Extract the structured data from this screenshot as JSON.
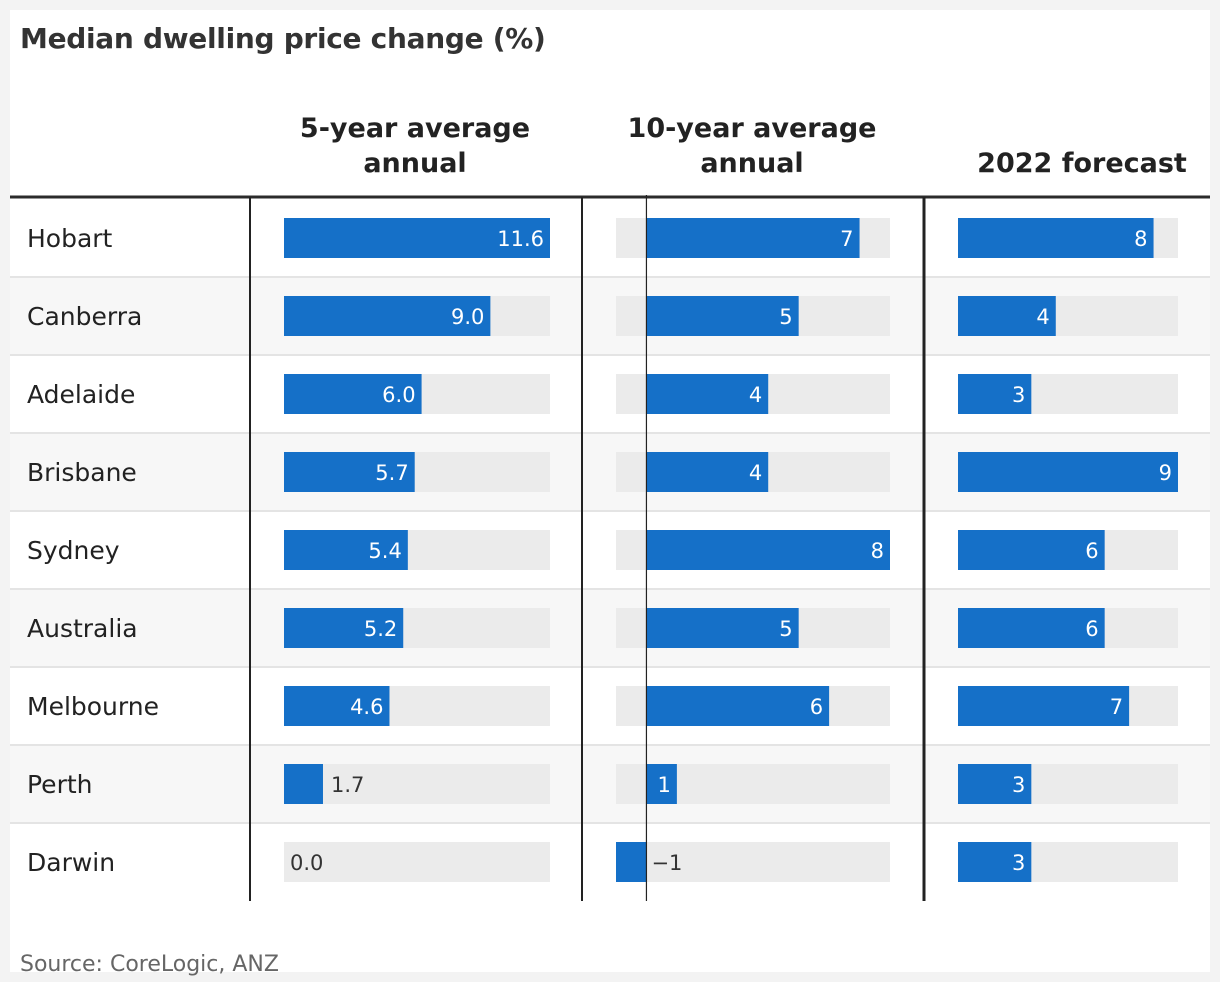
{
  "chart_data": {
    "type": "table",
    "title": "Median dwelling price change (%)",
    "source": "Source: CoreLogic, ANZ",
    "rows": [
      "Hobart",
      "Canberra",
      "Adelaide",
      "Brisbane",
      "Sydney",
      "Australia",
      "Melbourne",
      "Perth",
      "Darwin"
    ],
    "columns": [
      {
        "name": "5-year average annual",
        "header_lines": [
          "5-year average",
          "annual"
        ],
        "values": [
          11.6,
          9.0,
          6.0,
          5.7,
          5.4,
          5.2,
          4.6,
          1.7,
          0.0
        ],
        "labels": [
          "11.6",
          "9.0",
          "6.0",
          "5.7",
          "5.4",
          "5.2",
          "4.6",
          "1.7",
          "0.0"
        ],
        "range": [
          0,
          11.6
        ]
      },
      {
        "name": "10-year average annual",
        "header_lines": [
          "10-year average",
          "annual"
        ],
        "values": [
          7,
          5,
          4,
          4,
          8,
          5,
          6,
          1,
          -1
        ],
        "labels": [
          "7",
          "5",
          "4",
          "4",
          "8",
          "5",
          "6",
          "1",
          "−1"
        ],
        "range": [
          -1,
          8
        ]
      },
      {
        "name": "2022 forecast",
        "header_lines": [
          "2022 forecast"
        ],
        "values": [
          8,
          4,
          3,
          9,
          6,
          6,
          7,
          3,
          3
        ],
        "labels": [
          "8",
          "4",
          "3",
          "9",
          "6",
          "6",
          "7",
          "3",
          "3"
        ],
        "range": [
          0,
          9
        ]
      }
    ],
    "colors": {
      "bar": "#1570c8",
      "track": "#ebebeb",
      "row_alt": "#f7f7f7",
      "divider": "#e4e4e4",
      "axis": "#222222"
    }
  }
}
